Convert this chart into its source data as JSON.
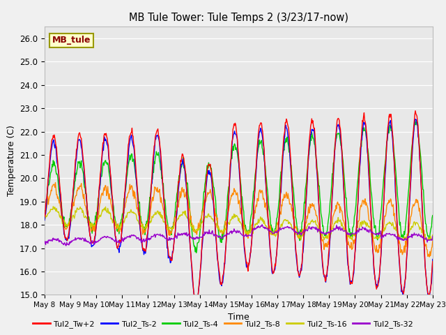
{
  "title": "MB Tule Tower: Tule Temps 2 (3/23/17-now)",
  "xlabel": "Time",
  "ylabel": "Temperature (C)",
  "ylim": [
    15.0,
    26.5
  ],
  "yticks": [
    15.0,
    16.0,
    17.0,
    18.0,
    19.0,
    20.0,
    21.0,
    22.0,
    23.0,
    24.0,
    25.0,
    26.0
  ],
  "xtick_labels": [
    "May 8",
    "May 9",
    "May 10",
    "May 11",
    "May 12",
    "May 13",
    "May 14",
    "May 15",
    "May 16",
    "May 17",
    "May 18",
    "May 19",
    "May 20",
    "May 21",
    "May 22",
    "May 23"
  ],
  "series_colors": {
    "Tul2_Tw+2": "#ff0000",
    "Tul2_Ts-2": "#0000ff",
    "Tul2_Ts-4": "#00cc00",
    "Tul2_Ts-8": "#ff8800",
    "Tul2_Ts-16": "#cccc00",
    "Tul2_Ts-32": "#9900cc"
  },
  "legend_label": "MB_tule",
  "fig_bg_color": "#f0f0f0",
  "plot_bg_color": "#e8e8e8",
  "grid_color": "#ffffff"
}
